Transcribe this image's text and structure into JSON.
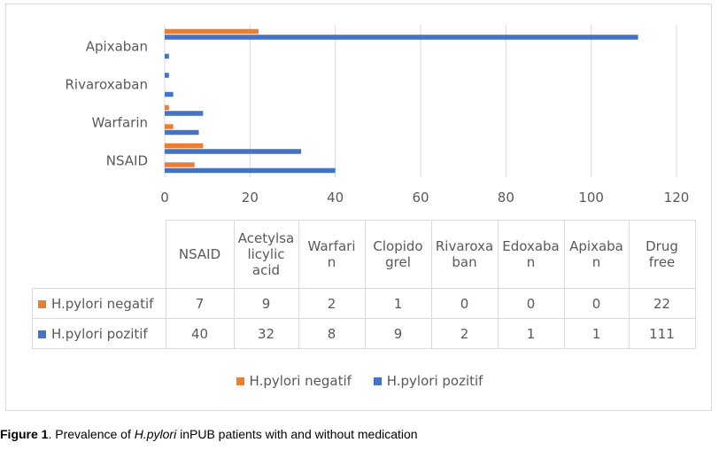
{
  "colors": {
    "negatif": "#ed7d31",
    "pozitif": "#4472c4",
    "grid": "#d9d9d9"
  },
  "chart_data": {
    "type": "bar",
    "orientation": "horizontal",
    "categories": [
      "NSAID",
      "Acetylsalicylic acid",
      "Warfarin",
      "Clopidogrel",
      "Rivaroxaban",
      "Edoxaban",
      "Apixaban",
      "Drug free"
    ],
    "visible_category_labels": [
      "NSAID",
      "Warfarin",
      "Rivaroxaban",
      "Apixaban"
    ],
    "series": [
      {
        "name": "H.pylori negatif",
        "values": [
          7,
          9,
          2,
          1,
          0,
          0,
          0,
          22
        ]
      },
      {
        "name": "H.pylori pozitif",
        "values": [
          40,
          32,
          8,
          9,
          2,
          1,
          1,
          111
        ]
      }
    ],
    "xlim": [
      0,
      120
    ],
    "xticks": [
      "0",
      "20",
      "40",
      "60",
      "80",
      "100",
      "120"
    ],
    "grid": true,
    "legend_position": "bottom"
  },
  "table": {
    "headers": [
      [
        "NSAID"
      ],
      [
        "Acetylsa",
        "licylic",
        "acid"
      ],
      [
        "Warfari",
        "n"
      ],
      [
        "Clopido",
        "grel"
      ],
      [
        "Rivaroxa",
        "ban"
      ],
      [
        "Edoxaba",
        "n"
      ],
      [
        "Apixaba",
        "n"
      ],
      [
        "Drug",
        "free"
      ]
    ],
    "rows": [
      {
        "label": "H.pylori negatif",
        "cells": [
          "7",
          "9",
          "2",
          "1",
          "0",
          "0",
          "0",
          "22"
        ]
      },
      {
        "label": "H.pylori pozitif",
        "cells": [
          "40",
          "32",
          "8",
          "9",
          "2",
          "1",
          "1",
          "111"
        ]
      }
    ]
  },
  "legend": {
    "negatif": "H.pylori negatif",
    "pozitif": "H.pylori pozitif"
  },
  "caption": {
    "bold": "Figure 1",
    "text1": ". Prevalence of ",
    "italic": "H.pylori",
    "text2": " inPUB patients with and without medication"
  }
}
